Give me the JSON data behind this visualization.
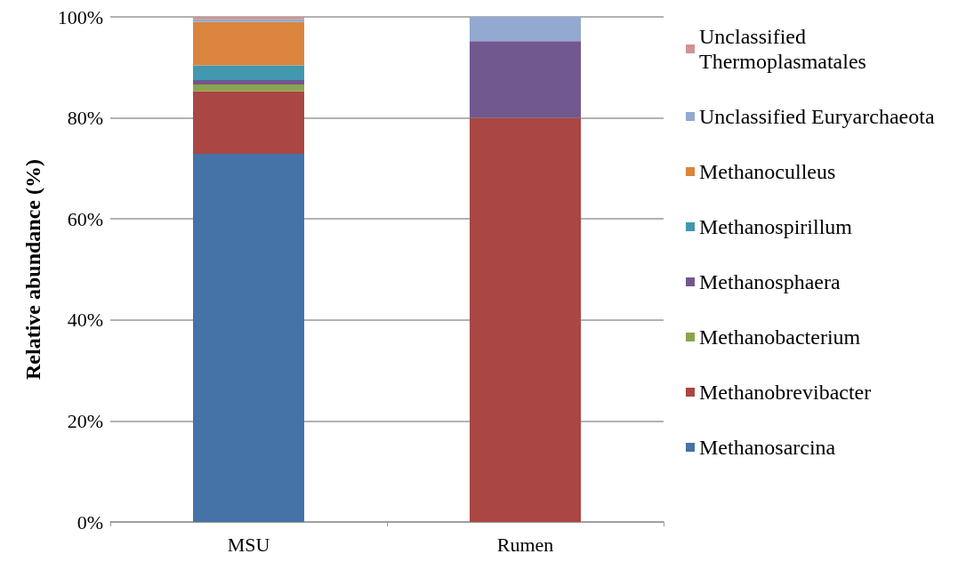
{
  "chart_data": {
    "type": "bar",
    "stacked": true,
    "ylabel": "Relative abundance (%)",
    "categories": [
      "MSU",
      "Rumen"
    ],
    "series": [
      {
        "name": "Methanosarcina",
        "color": "#4572a7",
        "values": [
          72.9,
          0
        ]
      },
      {
        "name": "Methanobrevibacter",
        "color": "#aa4643",
        "values": [
          12.4,
          80
        ]
      },
      {
        "name": "Methanobacterium",
        "color": "#89a54e",
        "values": [
          1.3,
          0
        ]
      },
      {
        "name": "Methanosphaera",
        "color": "#71588f",
        "values": [
          0.9,
          15.2
        ]
      },
      {
        "name": "Methanospirillum",
        "color": "#4198af",
        "values": [
          2.9,
          0
        ]
      },
      {
        "name": "Methanoculleus",
        "color": "#db843d",
        "values": [
          8.6,
          0
        ]
      },
      {
        "name": "Unclassified Euryarchaeota",
        "color": "#93a9cf",
        "values": [
          0.5,
          4.8
        ]
      },
      {
        "name": "Unclassified Thermoplasmatales",
        "color": "#d19392",
        "values": [
          0.5,
          0
        ]
      }
    ],
    "ylim": [
      0,
      100
    ],
    "yticks": [
      {
        "value": 0,
        "label": "0%"
      },
      {
        "value": 20,
        "label": "20%"
      },
      {
        "value": 40,
        "label": "40%"
      },
      {
        "value": 60,
        "label": "60%"
      },
      {
        "value": 80,
        "label": "80%"
      },
      {
        "value": 100,
        "label": "100%"
      }
    ],
    "grid": "y",
    "legend": "right"
  }
}
